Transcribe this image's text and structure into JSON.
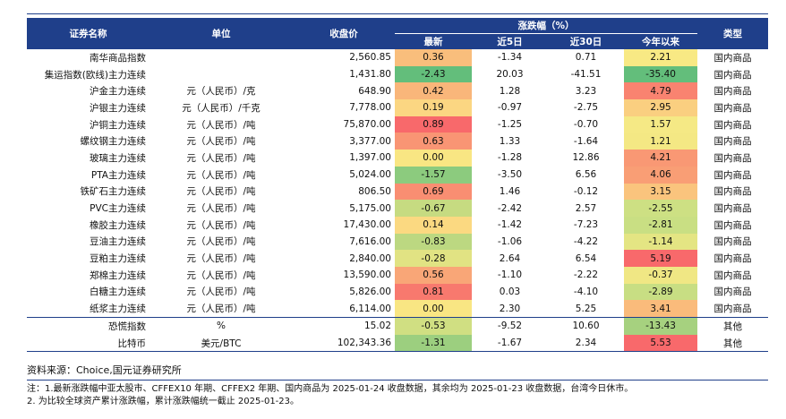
{
  "headers": {
    "name": "证券名称",
    "unit": "单位",
    "close": "收盘价",
    "change_group": "涨跌幅（%）",
    "latest": "最新",
    "d5": "近5日",
    "d30": "近30日",
    "ytd": "今年以来",
    "type": "类型"
  },
  "rows": [
    {
      "name": "南华商品指数",
      "unit": "",
      "close": "2,560.85",
      "latest": "0.36",
      "d5": "-1.34",
      "d30": "0.71",
      "ytd": "2.21",
      "type": "国内商品",
      "latest_color": "#f9be7c",
      "ytd_color": "#f8e984"
    },
    {
      "name": "集运指数(欧线)主力连续",
      "unit": "",
      "close": "1,431.80",
      "latest": "-2.43",
      "d5": "20.03",
      "d30": "-41.51",
      "ytd": "-35.40",
      "type": "国内商品",
      "latest_color": "#63be7b",
      "ytd_color": "#63be7b"
    },
    {
      "name": "沪金主力连续",
      "unit": "元（人民币）/克",
      "close": "648.90",
      "latest": "0.42",
      "d5": "1.28",
      "d30": "3.23",
      "ytd": "4.79",
      "type": "国内商品",
      "latest_color": "#f9b67a",
      "ytd_color": "#f98370"
    },
    {
      "name": "沪银主力连续",
      "unit": "元（人民币）/千克",
      "close": "7,778.00",
      "latest": "0.19",
      "d5": "-0.97",
      "d30": "-2.75",
      "ytd": "2.95",
      "type": "国内商品",
      "latest_color": "#fbd682",
      "ytd_color": "#facf80"
    },
    {
      "name": "沪铜主力连续",
      "unit": "元（人民币）/吨",
      "close": "75,870.00",
      "latest": "0.89",
      "d5": "-1.25",
      "d30": "-0.70",
      "ytd": "1.57",
      "type": "国内商品",
      "latest_color": "#f8696b",
      "ytd_color": "#f5e985"
    },
    {
      "name": "螺纹钢主力连续",
      "unit": "元（人民币）/吨",
      "close": "3,377.00",
      "latest": "0.63",
      "d5": "1.33",
      "d30": "-1.64",
      "ytd": "1.21",
      "type": "国内商品",
      "latest_color": "#f99574",
      "ytd_color": "#f4e884"
    },
    {
      "name": "玻璃主力连续",
      "unit": "元（人民币）/吨",
      "close": "1,397.00",
      "latest": "0.00",
      "d5": "-1.28",
      "d30": "12.86",
      "ytd": "4.21",
      "type": "国内商品",
      "latest_color": "#f9e683",
      "ytd_color": "#f99874"
    },
    {
      "name": "PTA主力连续",
      "unit": "元（人民币）/吨",
      "close": "5,024.00",
      "latest": "-1.57",
      "d5": "-3.50",
      "d30": "6.56",
      "ytd": "4.06",
      "type": "国内商品",
      "latest_color": "#8ccb7e",
      "ytd_color": "#f99e75"
    },
    {
      "name": "铁矿石主力连续",
      "unit": "元（人民币）/吨",
      "close": "806.50",
      "latest": "0.69",
      "d5": "1.46",
      "d30": "-0.12",
      "ytd": "3.15",
      "type": "国内商品",
      "latest_color": "#f98e72",
      "ytd_color": "#fac47d"
    },
    {
      "name": "PVC主力连续",
      "unit": "元（人民币）/吨",
      "close": "5,175.00",
      "latest": "-0.67",
      "d5": "-2.42",
      "d30": "2.57",
      "ytd": "-2.55",
      "type": "国内商品",
      "latest_color": "#c6db81",
      "ytd_color": "#cde083"
    },
    {
      "name": "橡胶主力连续",
      "unit": "元（人民币）/吨",
      "close": "17,430.00",
      "latest": "0.14",
      "d5": "-1.42",
      "d30": "-7.23",
      "ytd": "-2.81",
      "type": "国内商品",
      "latest_color": "#fbd981",
      "ytd_color": "#c9df83"
    },
    {
      "name": "豆油主力连续",
      "unit": "元（人民币）/吨",
      "close": "7,616.00",
      "latest": "-0.83",
      "d5": "-1.06",
      "d30": "-4.22",
      "ytd": "-1.14",
      "type": "国内商品",
      "latest_color": "#bcd881",
      "ytd_color": "#e4e583"
    },
    {
      "name": "豆粕主力连续",
      "unit": "元（人民币）/吨",
      "close": "2,840.00",
      "latest": "-0.28",
      "d5": "2.64",
      "d30": "6.54",
      "ytd": "5.19",
      "type": "国内商品",
      "latest_color": "#e1e383",
      "ytd_color": "#f8696b"
    },
    {
      "name": "郑棉主力连续",
      "unit": "元（人民币）/吨",
      "close": "13,590.00",
      "latest": "0.56",
      "d5": "-1.10",
      "d30": "-2.22",
      "ytd": "-0.37",
      "type": "国内商品",
      "latest_color": "#f9a677",
      "ytd_color": "#f0e784"
    },
    {
      "name": "白糖主力连续",
      "unit": "元（人民币）/吨",
      "close": "5,826.00",
      "latest": "0.81",
      "d5": "0.03",
      "d30": "-4.10",
      "ytd": "-2.89",
      "type": "国内商品",
      "latest_color": "#f8796e",
      "ytd_color": "#c8de83"
    },
    {
      "name": "纸浆主力连续",
      "unit": "元（人民币）/吨",
      "close": "6,114.00",
      "latest": "0.00",
      "d5": "2.30",
      "d30": "5.25",
      "ytd": "3.41",
      "type": "国内商品",
      "latest_color": "#f9e683",
      "ytd_color": "#fabb7b"
    },
    {
      "name": "恐慌指数",
      "unit": "%",
      "close": "15.02",
      "latest": "-0.53",
      "d5": "-9.52",
      "d30": "10.60",
      "ytd": "-13.43",
      "type": "其他",
      "latest_color": "#d0df82",
      "ytd_color": "#a6d17f"
    },
    {
      "name": "比特币",
      "unit": "美元/BTC",
      "close": "102,343.36",
      "latest": "-1.31",
      "d5": "-1.67",
      "d30": "2.34",
      "ytd": "5.53",
      "type": "其他",
      "latest_color": "#9ccf7f",
      "ytd_color": "#f8696b"
    }
  ],
  "notes": {
    "source": "资料来源：Choice,国元证券研究所",
    "note1": "注：1.最新涨跌幅中亚太股市、CFFEX10 年期、CFFEX2 年期、国内商品为 2025-01-24 收盘数据，其余均为 2025-01-23 收盘数据，台湾今日休市。",
    "note2": "2. 为比较全球资产累计涨跌幅，累计涨跌幅统一截止 2025-01-23。"
  }
}
